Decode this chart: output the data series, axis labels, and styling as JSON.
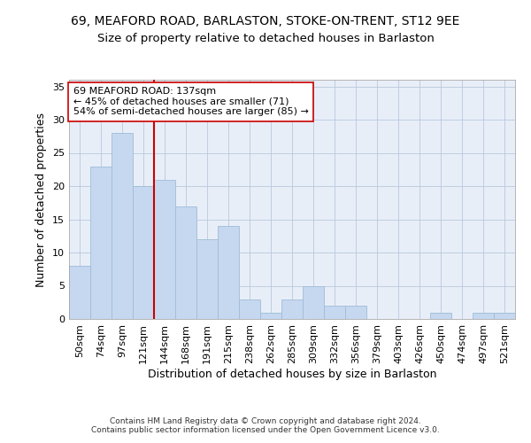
{
  "title": "69, MEAFORD ROAD, BARLASTON, STOKE-ON-TRENT, ST12 9EE",
  "subtitle": "Size of property relative to detached houses in Barlaston",
  "xlabel": "Distribution of detached houses by size in Barlaston",
  "ylabel": "Number of detached properties",
  "categories": [
    "50sqm",
    "74sqm",
    "97sqm",
    "121sqm",
    "144sqm",
    "168sqm",
    "191sqm",
    "215sqm",
    "238sqm",
    "262sqm",
    "285sqm",
    "309sqm",
    "332sqm",
    "356sqm",
    "379sqm",
    "403sqm",
    "426sqm",
    "450sqm",
    "474sqm",
    "497sqm",
    "521sqm"
  ],
  "values": [
    8,
    23,
    28,
    20,
    21,
    17,
    12,
    14,
    3,
    1,
    3,
    5,
    2,
    2,
    0,
    0,
    0,
    1,
    0,
    1,
    1
  ],
  "bar_color": "#c5d8f0",
  "bar_edge_color": "#a0bcd8",
  "vline_x": 3.5,
  "vline_color": "#cc0000",
  "annotation_text": "69 MEAFORD ROAD: 137sqm\n← 45% of detached houses are smaller (71)\n54% of semi-detached houses are larger (85) →",
  "annotation_box_color": "#ffffff",
  "annotation_box_edge": "#cc0000",
  "ylim": [
    0,
    36
  ],
  "yticks": [
    0,
    5,
    10,
    15,
    20,
    25,
    30,
    35
  ],
  "footer": "Contains HM Land Registry data © Crown copyright and database right 2024.\nContains public sector information licensed under the Open Government Licence v3.0.",
  "bg_color": "#e8eef8",
  "title_fontsize": 10,
  "subtitle_fontsize": 9.5,
  "axis_label_fontsize": 9,
  "tick_fontsize": 8,
  "annotation_fontsize": 8,
  "footer_fontsize": 6.5
}
